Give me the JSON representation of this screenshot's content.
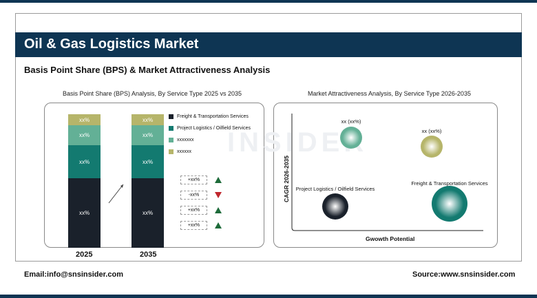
{
  "header": {
    "title": "Oil & Gas Logistics Market",
    "subtitle": "Basis Point Share (BPS) & Market Attractiveness Analysis"
  },
  "chart_data": [
    {
      "type": "bar",
      "stacked": true,
      "title": "Basis Point Share (BPS) Analysis, By Service Type 2025 vs 2035",
      "categories": [
        "2025",
        "2035"
      ],
      "series": [
        {
          "name": "Freight & Transportation Services",
          "color": "#1a212b",
          "labels": [
            "xx%",
            "xx%"
          ]
        },
        {
          "name": "Project Logistics / Oilfield Services",
          "color": "#137a70",
          "labels": [
            "xx%",
            "xx%"
          ]
        },
        {
          "name": "xxxxxxx",
          "color": "#63b096",
          "labels": [
            "xx%",
            "xx%"
          ]
        },
        {
          "name": "xxxxxx",
          "color": "#b6b56a",
          "labels": [
            "xx%",
            "xx%"
          ]
        }
      ],
      "changes": [
        {
          "label": "+xx%",
          "direction": "up"
        },
        {
          "label": "-xx%",
          "direction": "down"
        },
        {
          "label": "+xx%",
          "direction": "up"
        },
        {
          "label": "+xx%",
          "direction": "up"
        }
      ],
      "legend": "right"
    },
    {
      "type": "scatter",
      "title": "Market Attractiveness Analysis, By Service Type 2026-2035",
      "xlabel": "Gwowth Potential",
      "ylabel": "CAGR 2026-2035",
      "points": [
        {
          "label": "xx (xx%)",
          "color": "#63b096"
        },
        {
          "label": "xx (xx%)",
          "color": "#b6b56a"
        },
        {
          "label": "Project Logistics / Oilfield Services",
          "color": "#1a212b"
        },
        {
          "label": "Freight & Transportation Services",
          "color": "#137a70"
        }
      ]
    }
  ],
  "footer": {
    "email": "Email:info@snsinsider.com",
    "source": "Source:www.snsinsider.com"
  }
}
